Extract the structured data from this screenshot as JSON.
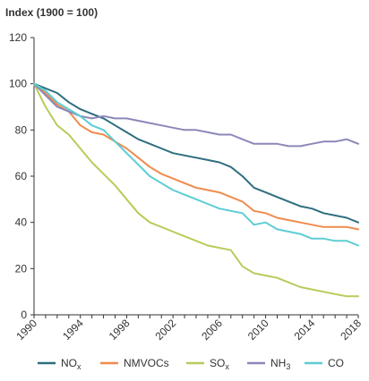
{
  "chart_data": {
    "type": "line",
    "title": "Index (1900 = 100)",
    "xlabel": "",
    "ylabel": "",
    "xlim": [
      1990,
      2018
    ],
    "ylim": [
      0,
      120
    ],
    "yticks": [
      0,
      20,
      40,
      60,
      80,
      100,
      120
    ],
    "xticks": [
      1990,
      1994,
      1998,
      2002,
      2006,
      2010,
      2014,
      2018
    ],
    "grid": false,
    "legend_position": "bottom",
    "x": [
      1990,
      1991,
      1992,
      1993,
      1994,
      1995,
      1996,
      1997,
      1998,
      1999,
      2000,
      2001,
      2002,
      2003,
      2004,
      2005,
      2006,
      2007,
      2008,
      2009,
      2010,
      2011,
      2012,
      2013,
      2014,
      2015,
      2016,
      2017,
      2018
    ],
    "series": [
      {
        "name": "NOx",
        "label_main": "NO",
        "label_sub": "x",
        "color": "#2e6e7e",
        "values": [
          100,
          98,
          96,
          92,
          89,
          87,
          85,
          82,
          79,
          76,
          74,
          72,
          70,
          69,
          68,
          67,
          66,
          64,
          60,
          55,
          53,
          51,
          49,
          47,
          46,
          44,
          43,
          42,
          40
        ]
      },
      {
        "name": "NMVOCs",
        "label_main": "NMVOCs",
        "label_sub": "",
        "color": "#f08b4e",
        "values": [
          100,
          96,
          91,
          88,
          82,
          79,
          78,
          75,
          72,
          68,
          64,
          61,
          59,
          57,
          55,
          54,
          53,
          51,
          49,
          45,
          44,
          42,
          41,
          40,
          39,
          38,
          38,
          38,
          37
        ]
      },
      {
        "name": "SOx",
        "label_main": "SO",
        "label_sub": "x",
        "color": "#b7cc5a",
        "values": [
          100,
          90,
          82,
          78,
          72,
          66,
          61,
          56,
          50,
          44,
          40,
          38,
          36,
          34,
          32,
          30,
          29,
          28,
          21,
          18,
          17,
          16,
          14,
          12,
          11,
          10,
          9,
          8,
          8
        ]
      },
      {
        "name": "NH3",
        "label_main": "NH",
        "label_sub": "3",
        "color": "#8b88b8",
        "values": [
          100,
          95,
          90,
          88,
          86,
          85,
          86,
          85,
          85,
          84,
          83,
          82,
          81,
          80,
          80,
          79,
          78,
          78,
          76,
          74,
          74,
          74,
          73,
          73,
          74,
          75,
          75,
          76,
          74
        ]
      },
      {
        "name": "CO",
        "label_main": "CO",
        "label_sub": "",
        "color": "#5ccdd4",
        "values": [
          100,
          97,
          92,
          89,
          86,
          82,
          80,
          75,
          70,
          65,
          60,
          57,
          54,
          52,
          50,
          48,
          46,
          45,
          44,
          39,
          40,
          37,
          36,
          35,
          33,
          33,
          32,
          32,
          30
        ]
      }
    ]
  }
}
